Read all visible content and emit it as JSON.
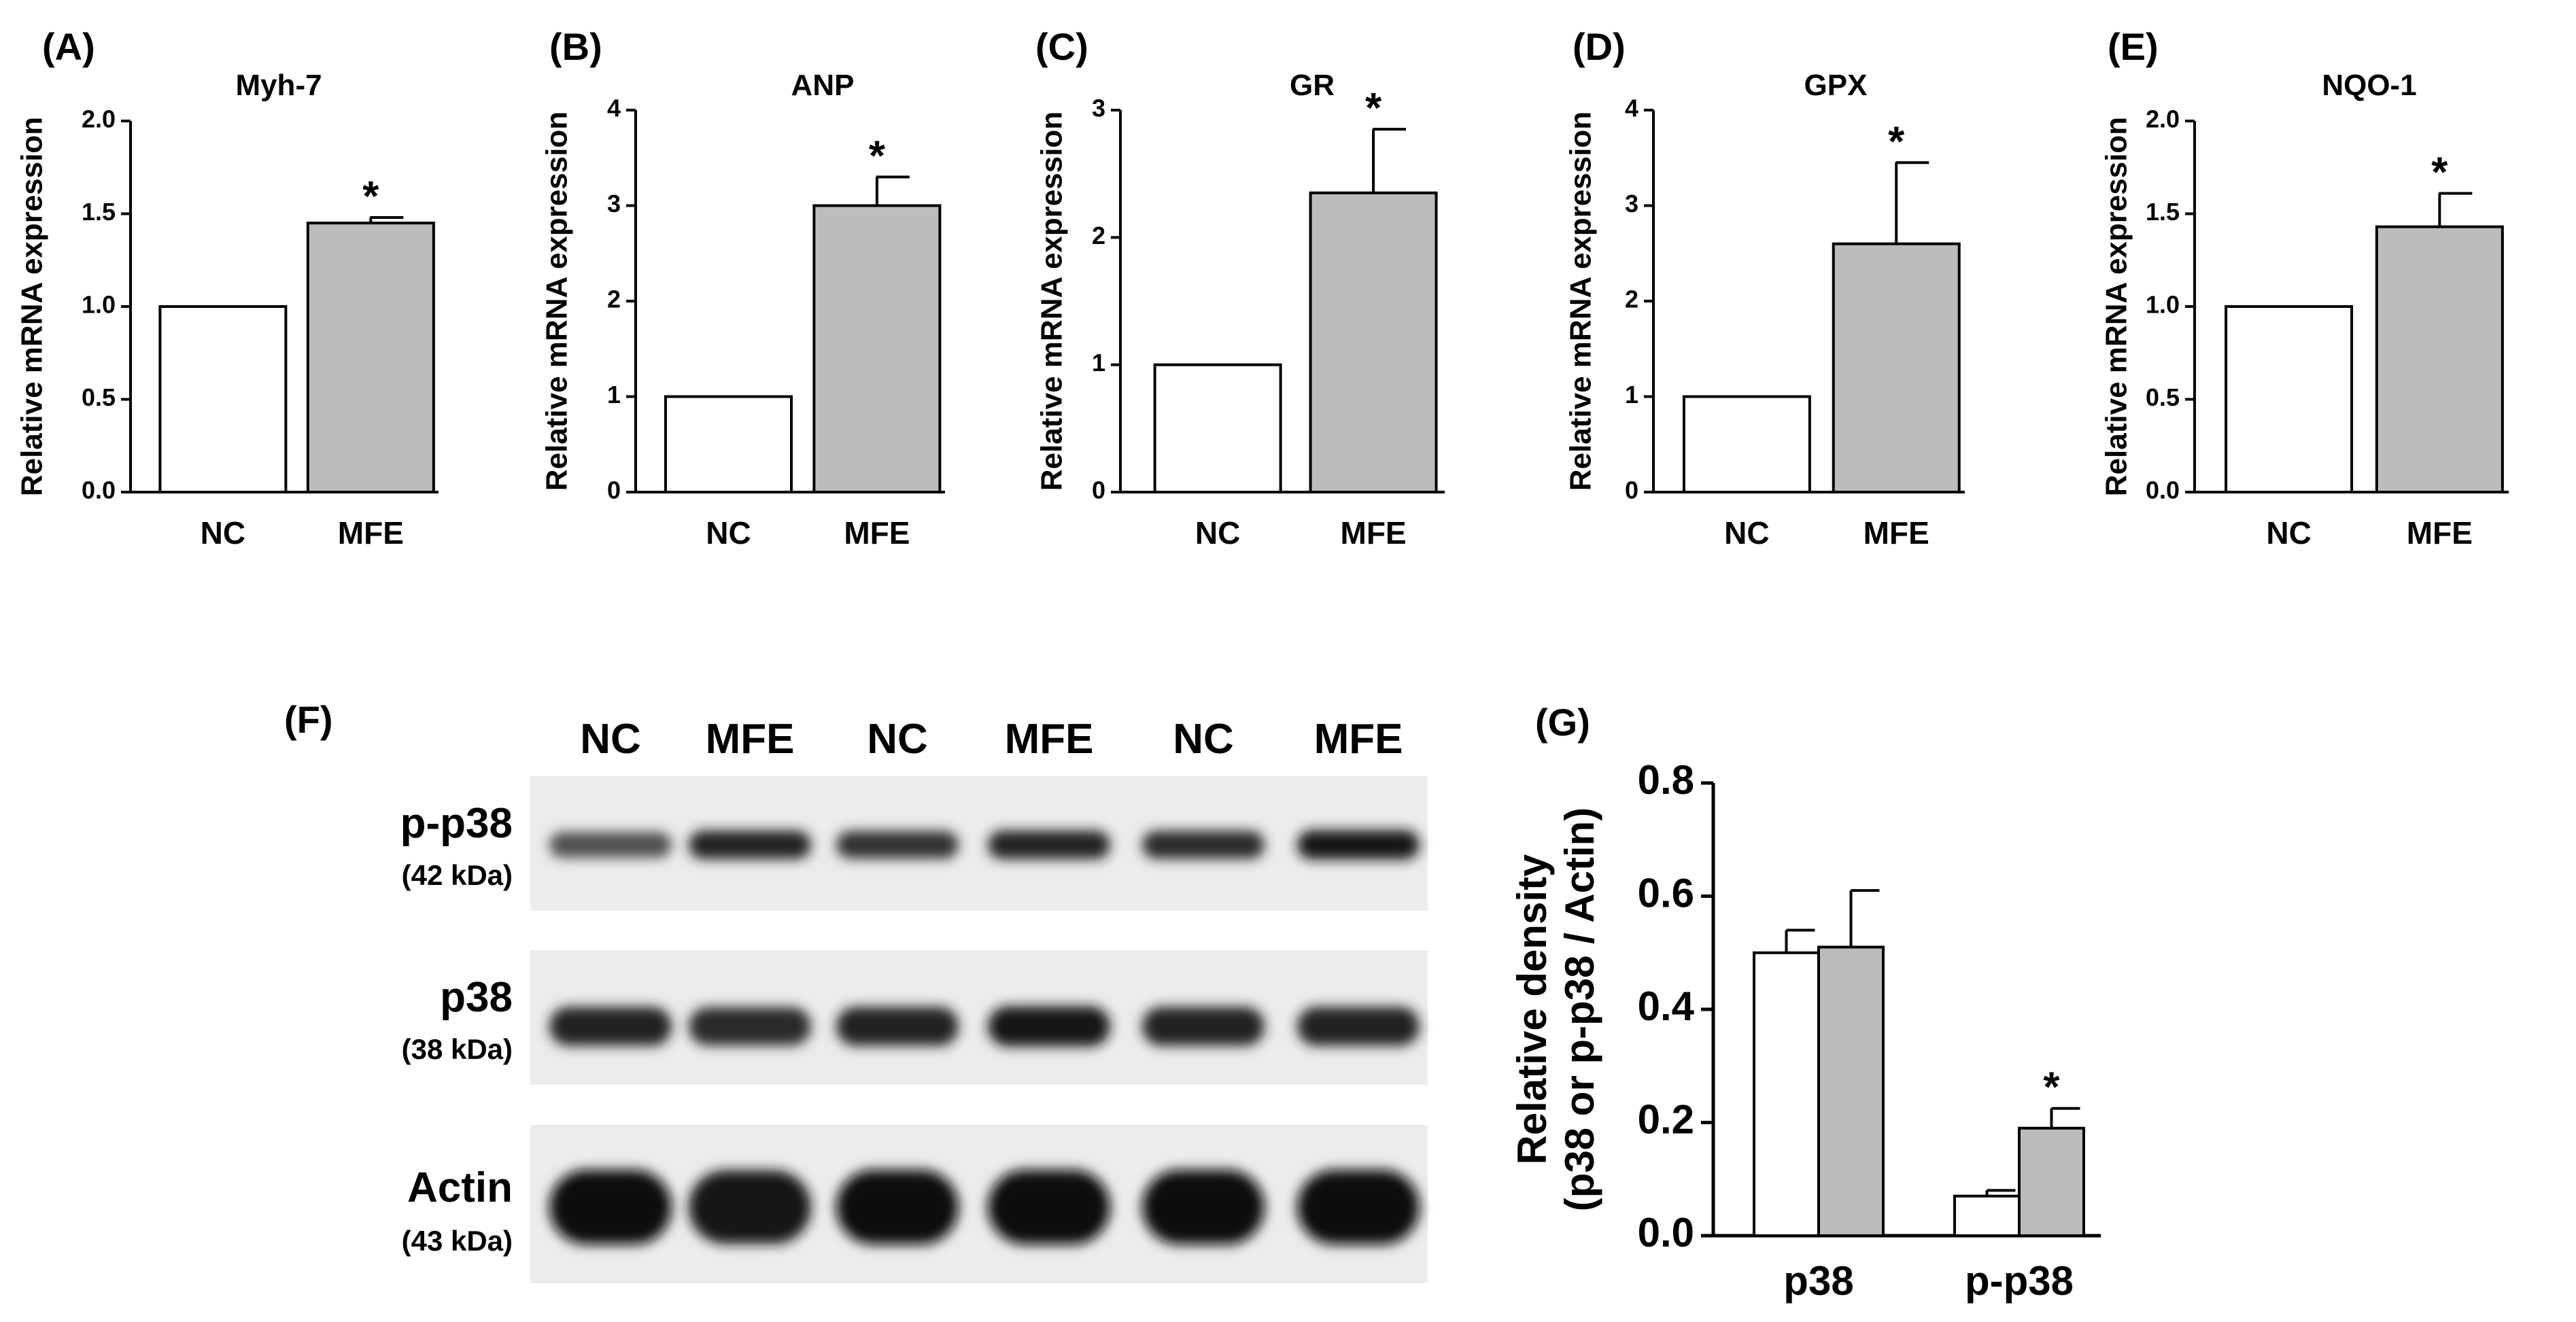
{
  "panels_top": [
    {
      "label": "(A)",
      "title": "Myh-7",
      "ylabel": "Relative mRNA expression"
    },
    {
      "label": "(B)",
      "title": "ANP",
      "ylabel": "Relative mRNA expression"
    },
    {
      "label": "(C)",
      "title": "GR",
      "ylabel": "Relative mRNA expression"
    },
    {
      "label": "(D)",
      "title": "GPX",
      "ylabel": "Relative mRNA expression"
    },
    {
      "label": "(E)",
      "title": "NQO-1",
      "ylabel": "Relative mRNA expression"
    }
  ],
  "blot": {
    "label": "(F)",
    "lanes": [
      "NC",
      "MFE",
      "NC",
      "MFE",
      "NC",
      "MFE"
    ],
    "bands": [
      {
        "name": "p-p38",
        "kda": "(42 kDa)",
        "intensity": [
          0.55,
          0.85,
          0.75,
          0.85,
          0.8,
          0.95
        ]
      },
      {
        "name": "p38",
        "kda": "(38 kDa)",
        "intensity": [
          0.85,
          0.8,
          0.85,
          0.95,
          0.85,
          0.85
        ]
      },
      {
        "name": "Actin",
        "kda": "(43 kDa)",
        "intensity": [
          1.0,
          0.95,
          1.0,
          1.0,
          1.0,
          1.0
        ]
      }
    ]
  },
  "panel_g": {
    "label": "(G)",
    "ylabel_line1": "Relative density",
    "ylabel_line2": "(p38 or p-p38 / Actin)"
  },
  "colors": {
    "nc": "#ffffff",
    "mfe": "#bcbcbc",
    "stroke": "#000000"
  },
  "chart_data": [
    {
      "type": "bar",
      "title": "Myh-7",
      "xlabel": "",
      "ylabel": "Relative mRNA expression",
      "categories": [
        "NC",
        "MFE"
      ],
      "values": [
        1.0,
        1.45
      ],
      "errors": [
        0,
        0.03
      ],
      "significance": [
        "",
        "*"
      ],
      "ylim": [
        0,
        2.0
      ],
      "yticks": [
        0.0,
        0.5,
        1.0,
        1.5,
        2.0
      ],
      "ytick_labels": [
        "0.0",
        "0.5",
        "1.0",
        "1.5",
        "2.0"
      ]
    },
    {
      "type": "bar",
      "title": "ANP",
      "xlabel": "",
      "ylabel": "Relative mRNA expression",
      "categories": [
        "NC",
        "MFE"
      ],
      "values": [
        1.0,
        3.0
      ],
      "errors": [
        0,
        0.3
      ],
      "significance": [
        "",
        "*"
      ],
      "ylim": [
        0,
        4
      ],
      "yticks": [
        0,
        1,
        2,
        3,
        4
      ],
      "ytick_labels": [
        "0",
        "1",
        "2",
        "3",
        "4"
      ]
    },
    {
      "type": "bar",
      "title": "GR",
      "xlabel": "",
      "ylabel": "Relative mRNA expression",
      "categories": [
        "NC",
        "MFE"
      ],
      "values": [
        1.0,
        2.35
      ],
      "errors": [
        0,
        0.5
      ],
      "significance": [
        "",
        "*"
      ],
      "ylim": [
        0,
        3
      ],
      "yticks": [
        0,
        1,
        2,
        3
      ],
      "ytick_labels": [
        "0",
        "1",
        "2",
        "3"
      ]
    },
    {
      "type": "bar",
      "title": "GPX",
      "xlabel": "",
      "ylabel": "Relative mRNA expression",
      "categories": [
        "NC",
        "MFE"
      ],
      "values": [
        1.0,
        2.6
      ],
      "errors": [
        0,
        0.85
      ],
      "significance": [
        "",
        "*"
      ],
      "ylim": [
        0,
        4
      ],
      "yticks": [
        0,
        1,
        2,
        3,
        4
      ],
      "ytick_labels": [
        "0",
        "1",
        "2",
        "3",
        "4"
      ]
    },
    {
      "type": "bar",
      "title": "NQO-1",
      "xlabel": "",
      "ylabel": "Relative mRNA expression",
      "categories": [
        "NC",
        "MFE"
      ],
      "values": [
        1.0,
        1.43
      ],
      "errors": [
        0,
        0.18
      ],
      "significance": [
        "",
        "*"
      ],
      "ylim": [
        0,
        2.0
      ],
      "yticks": [
        0.0,
        0.5,
        1.0,
        1.5,
        2.0
      ],
      "ytick_labels": [
        "0.0",
        "0.5",
        "1.0",
        "1.5",
        "2.0"
      ]
    },
    {
      "type": "bar",
      "title": "",
      "xlabel": "",
      "ylabel": "Relative density (p38 or p-p38 / Actin)",
      "categories": [
        "p38",
        "p-p38"
      ],
      "series": [
        {
          "values": [
            0.5,
            0.07
          ],
          "errors": [
            0.04,
            0.01
          ]
        },
        {
          "values": [
            0.51,
            0.19
          ],
          "errors": [
            0.1,
            0.035
          ],
          "significance": [
            "",
            "*"
          ]
        }
      ],
      "ylim": [
        0,
        0.8
      ],
      "yticks": [
        0.0,
        0.2,
        0.4,
        0.6,
        0.8
      ],
      "ytick_labels": [
        "0.0",
        "0.2",
        "0.4",
        "0.6",
        "0.8"
      ]
    }
  ]
}
